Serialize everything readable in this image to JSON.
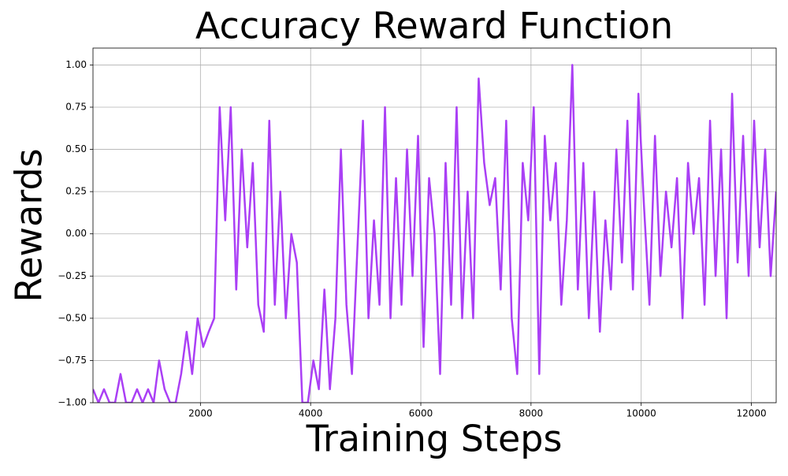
{
  "chart_data": {
    "type": "line",
    "title": "Accuracy Reward Function",
    "x_label": "Training Steps",
    "y_label": "Rewards",
    "xlim": [
      50,
      12450
    ],
    "ylim": [
      -1,
      1.1
    ],
    "xticks": [
      2000,
      4000,
      6000,
      8000,
      10000,
      12000
    ],
    "yticks": [
      {
        "value": -1,
        "label": "−1.00"
      },
      {
        "value": -0.75,
        "label": "−0.75"
      },
      {
        "value": -0.5,
        "label": "−0.50"
      },
      {
        "value": -0.25,
        "label": "−0.25"
      },
      {
        "value": 0,
        "label": "0.00"
      },
      {
        "value": 0.25,
        "label": "0.25"
      },
      {
        "value": 0.5,
        "label": "0.50"
      },
      {
        "value": 0.75,
        "label": "0.75"
      },
      {
        "value": 1,
        "label": "1.00"
      }
    ],
    "grid": true,
    "series": [
      {
        "color": "#aa3ff5",
        "x": [
          50,
          150,
          250,
          350,
          450,
          550,
          650,
          750,
          850,
          950,
          1050,
          1150,
          1250,
          1350,
          1450,
          1550,
          1650,
          1750,
          1850,
          1950,
          2050,
          2150,
          2250,
          2350,
          2450,
          2550,
          2650,
          2750,
          2850,
          2950,
          3050,
          3150,
          3250,
          3350,
          3450,
          3550,
          3650,
          3750,
          3850,
          3950,
          4050,
          4150,
          4250,
          4350,
          4450,
          4550,
          4650,
          4750,
          4850,
          4950,
          5050,
          5150,
          5250,
          5350,
          5450,
          5550,
          5650,
          5750,
          5850,
          5950,
          6050,
          6150,
          6250,
          6350,
          6450,
          6550,
          6650,
          6750,
          6850,
          6950,
          7050,
          7150,
          7250,
          7350,
          7450,
          7550,
          7650,
          7750,
          7850,
          7950,
          8050,
          8150,
          8250,
          8350,
          8450,
          8550,
          8650,
          8750,
          8850,
          8950,
          9050,
          9150,
          9250,
          9350,
          9450,
          9550,
          9650,
          9750,
          9850,
          9950,
          10050,
          10150,
          10250,
          10350,
          10450,
          10550,
          10650,
          10750,
          10850,
          10950,
          11050,
          11150,
          11250,
          11350,
          11450,
          11550,
          11650,
          11750,
          11850,
          11950,
          12050,
          12150,
          12250,
          12350,
          12450
        ],
        "values": [
          -0.92,
          -1,
          -0.92,
          -1,
          -1,
          -0.83,
          -1,
          -1,
          -0.92,
          -1,
          -0.92,
          -1,
          -0.75,
          -0.92,
          -1,
          -1,
          -0.83,
          -0.58,
          -0.83,
          -0.5,
          -0.67,
          -0.58,
          -0.5,
          0.75,
          0.08,
          0.75,
          -0.33,
          0.5,
          -0.08,
          0.42,
          -0.42,
          -0.58,
          0.67,
          -0.42,
          0.25,
          -0.5,
          0,
          -0.17,
          -1,
          -1,
          -0.75,
          -0.92,
          -0.33,
          -0.92,
          -0.5,
          0.5,
          -0.42,
          -0.83,
          -0.08,
          0.67,
          -0.5,
          0.08,
          -0.42,
          0.75,
          -0.5,
          0.33,
          -0.42,
          0.5,
          -0.25,
          0.58,
          -0.67,
          0.33,
          0,
          -0.83,
          0.42,
          -0.42,
          0.75,
          -0.5,
          0.25,
          -0.5,
          0.92,
          0.42,
          0.17,
          0.33,
          -0.33,
          0.67,
          -0.5,
          -0.83,
          0.42,
          0.08,
          0.75,
          -0.83,
          0.58,
          0.08,
          0.42,
          -0.42,
          0.08,
          1,
          -0.33,
          0.42,
          -0.5,
          0.25,
          -0.58,
          0.08,
          -0.33,
          0.5,
          -0.17,
          0.67,
          -0.33,
          0.83,
          0.17,
          -0.42,
          0.58,
          -0.25,
          0.25,
          -0.08,
          0.33,
          -0.5,
          0.42,
          0,
          0.33,
          -0.42,
          0.67,
          -0.25,
          0.5,
          -0.5,
          0.83,
          -0.17,
          0.58,
          -0.25,
          0.67,
          -0.08,
          0.5,
          -0.25,
          0.25
        ]
      }
    ]
  }
}
